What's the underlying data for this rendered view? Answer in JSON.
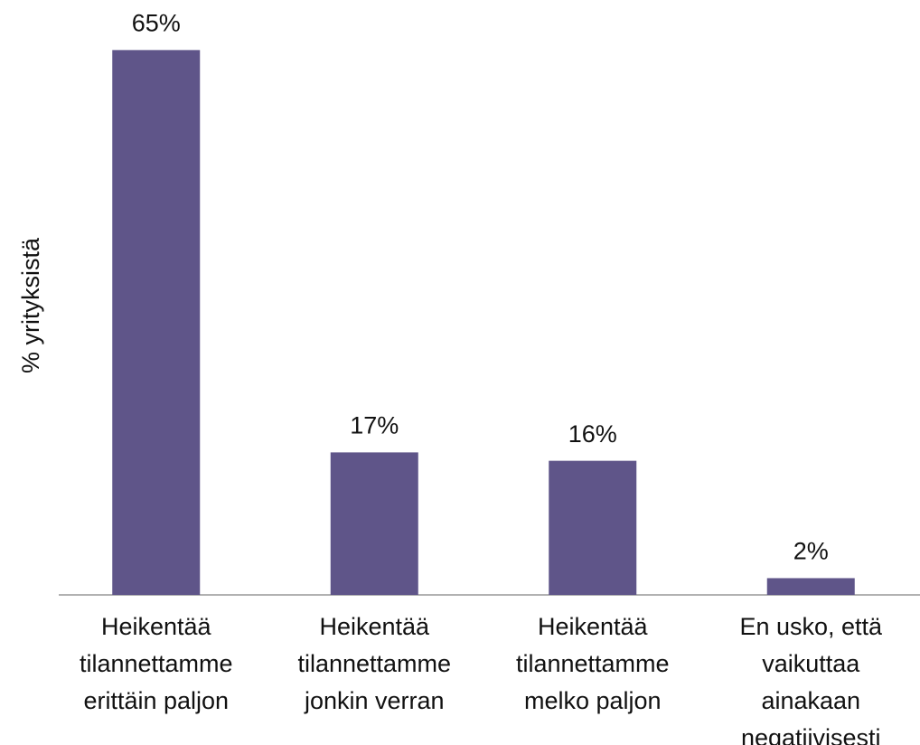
{
  "chart_data": {
    "type": "bar",
    "y_label": "% yrityksistä",
    "categories": [
      [
        "Heikentää",
        "tilannettamme",
        "erittäin paljon"
      ],
      [
        "Heikentää",
        "tilannettamme",
        "jonkin verran"
      ],
      [
        "Heikentää",
        "tilannettamme",
        "melko paljon"
      ],
      [
        "En usko, että",
        "vaikuttaa",
        "ainakaan",
        "negatiivisesti"
      ]
    ],
    "values": [
      65,
      17,
      16,
      2
    ],
    "value_labels": [
      "65%",
      "17%",
      "16%",
      "2%"
    ],
    "color": "#5f5589",
    "ylim": [
      0,
      70
    ]
  }
}
